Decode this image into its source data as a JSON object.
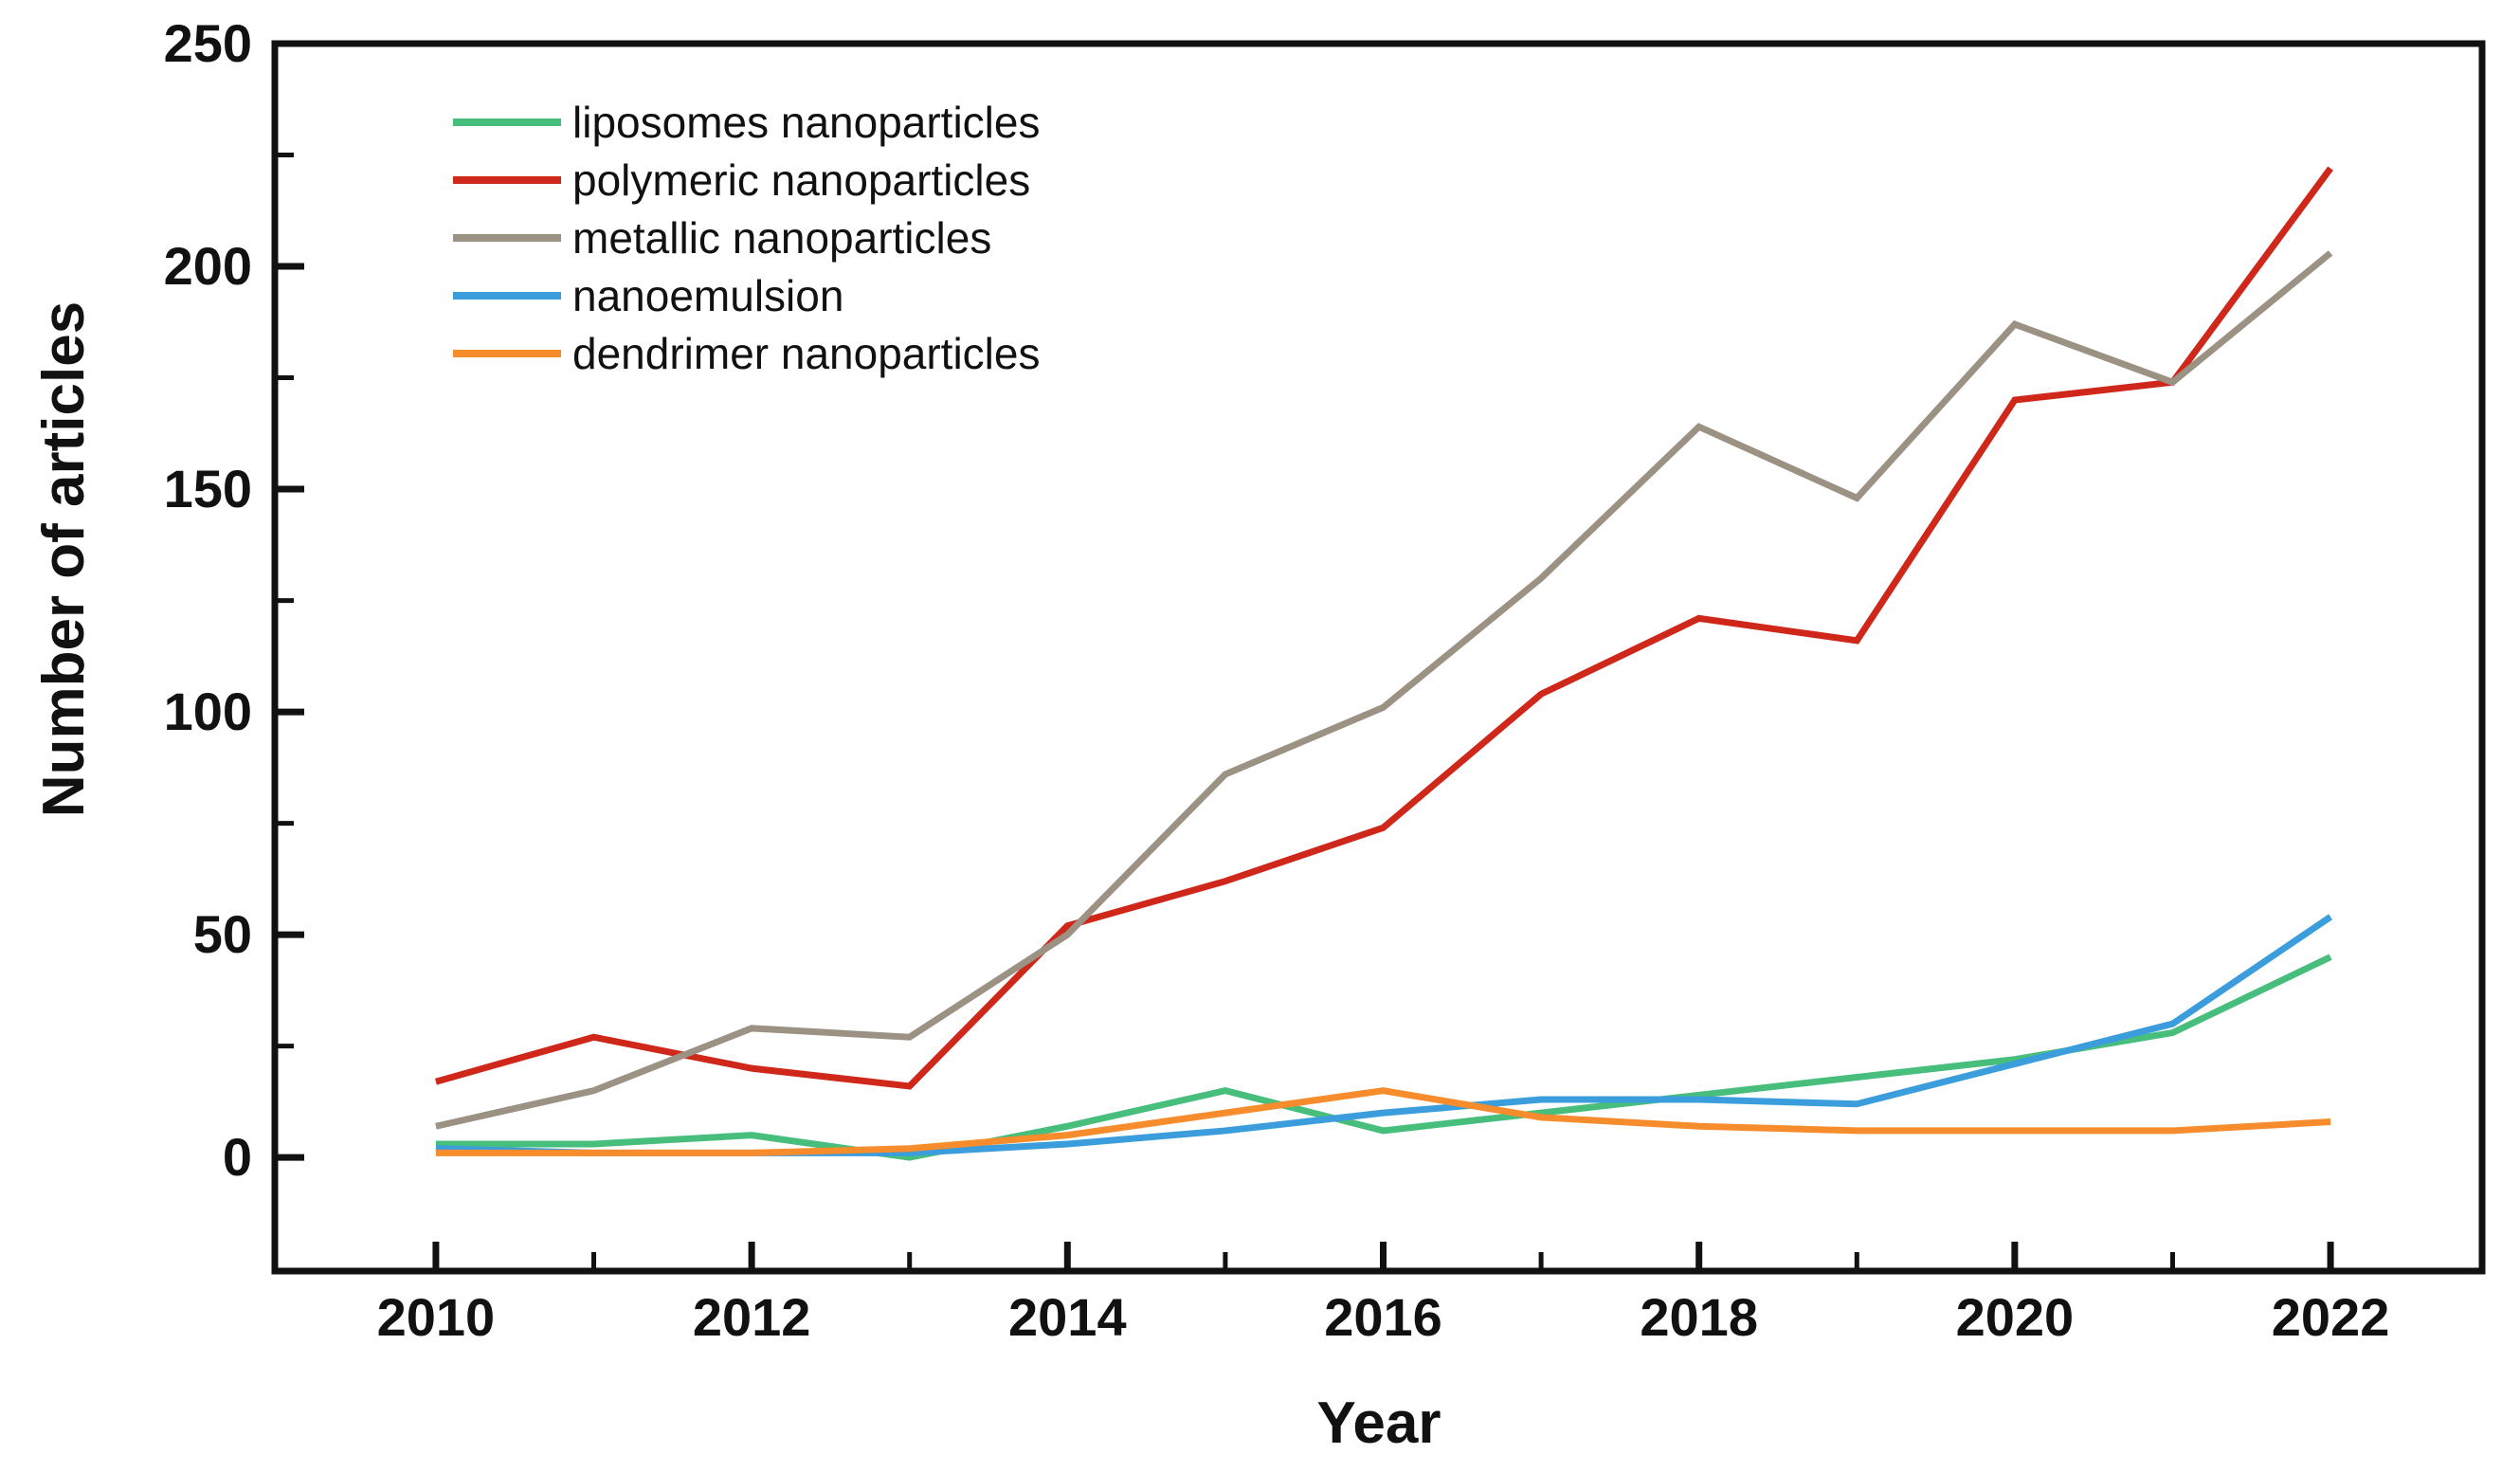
{
  "chart_data": {
    "type": "line",
    "title": "",
    "xlabel": "Year",
    "ylabel": "Number of articles",
    "x": [
      2010,
      2011,
      2012,
      2013,
      2014,
      2015,
      2016,
      2017,
      2018,
      2019,
      2020,
      2021,
      2022
    ],
    "series": [
      {
        "name": "liposomes nanoparticles",
        "color": "#47BE7C",
        "values": [
          3,
          3,
          5,
          0,
          7,
          15,
          6,
          10,
          14,
          18,
          22,
          28,
          45
        ]
      },
      {
        "name": "polymeric nanoparticles",
        "color": "#D0271B",
        "values": [
          17,
          27,
          20,
          16,
          52,
          62,
          74,
          104,
          121,
          116,
          170,
          174,
          222
        ]
      },
      {
        "name": "metallic nanoparticles",
        "color": "#9C9284",
        "values": [
          7,
          15,
          29,
          27,
          50,
          86,
          101,
          130,
          164,
          148,
          187,
          174,
          203
        ]
      },
      {
        "name": "nanoemulsion",
        "color": "#3C9DDC",
        "values": [
          2,
          1,
          1,
          1,
          3,
          6,
          10,
          13,
          13,
          12,
          21,
          30,
          54
        ]
      },
      {
        "name": "dendrimer nanoparticles",
        "color": "#F78C2D",
        "values": [
          1,
          1,
          1,
          2,
          5,
          10,
          15,
          9,
          7,
          6,
          6,
          6,
          8
        ]
      }
    ],
    "xlim": [
      2008.98,
      2022.96
    ],
    "ylim": [
      -25.5,
      250
    ],
    "y_major_ticks": [
      0,
      50,
      100,
      150,
      200,
      250
    ],
    "y_minor_ticks": [
      25,
      75,
      125,
      175,
      225
    ],
    "x_major_ticks": [
      2010,
      2012,
      2014,
      2016,
      2018,
      2020,
      2022
    ],
    "x_minor_ticks": [
      2011,
      2013,
      2015,
      2017,
      2019,
      2021
    ],
    "grid": false,
    "legend_position": "upper-left",
    "axis_color": "#111111",
    "background_color": "#ffffff"
  }
}
